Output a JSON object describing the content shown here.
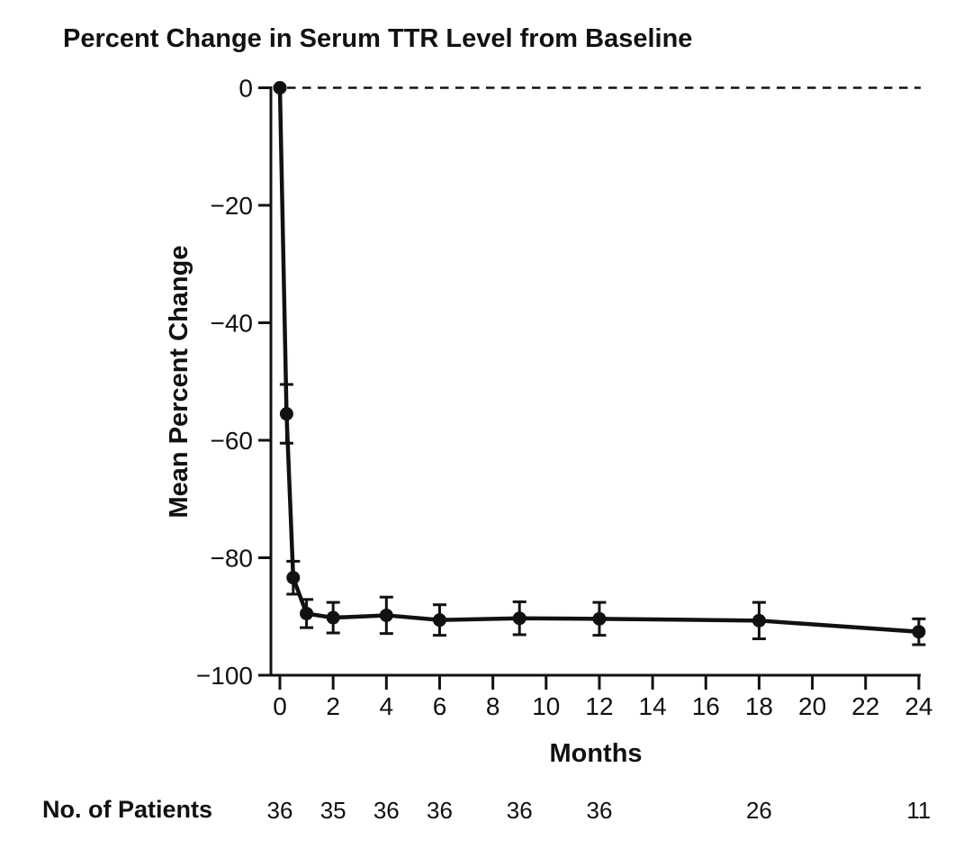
{
  "figure": {
    "title": "Percent Change in Serum TTR Level from Baseline"
  },
  "chart_data": {
    "type": "line",
    "title": "Percent Change in Serum TTR Level from Baseline",
    "xlabel": "Months",
    "ylabel": "Mean Percent Change",
    "xlim": [
      0,
      24
    ],
    "ylim": [
      -100,
      0
    ],
    "grid": false,
    "baseline_y": 0,
    "baseline_style": "dashed",
    "line_color": "#111111",
    "x_ticks": [
      0,
      2,
      4,
      6,
      8,
      10,
      12,
      14,
      16,
      18,
      20,
      22,
      24
    ],
    "y_ticks": [
      {
        "value": 0,
        "label": "0"
      },
      {
        "value": -20,
        "label": "−20"
      },
      {
        "value": -40,
        "label": "−40"
      },
      {
        "value": -60,
        "label": "−60"
      },
      {
        "value": -80,
        "label": "−80"
      },
      {
        "value": -100,
        "label": "−100"
      }
    ],
    "series": [
      {
        "name": "Mean percent change in serum TTR level",
        "x": [
          0,
          0.25,
          0.5,
          1,
          2,
          4,
          6,
          9,
          12,
          18,
          24
        ],
        "y": [
          0,
          -55.5,
          -83.4,
          -89.5,
          -90.2,
          -89.8,
          -90.6,
          -90.3,
          -90.4,
          -90.7,
          -92.6
        ],
        "error": [
          0,
          5.0,
          2.8,
          2.4,
          2.6,
          3.1,
          2.6,
          2.8,
          2.8,
          3.1,
          2.2
        ]
      }
    ],
    "patients_row": {
      "label": "No. of Patients",
      "months": [
        0,
        2,
        4,
        6,
        9,
        12,
        18,
        24
      ],
      "values": [
        36,
        35,
        36,
        36,
        36,
        36,
        26,
        11
      ]
    }
  }
}
